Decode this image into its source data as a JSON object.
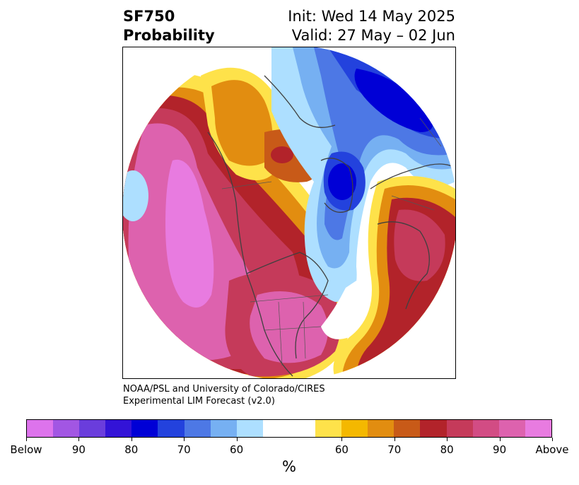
{
  "title": {
    "variable": "SF750",
    "subtitle": "Probability",
    "init": "Init: Wed 14 May 2025",
    "valid": "Valid: 27 May – 02 Jun"
  },
  "credit": {
    "line1": "NOAA/PSL and University of Colorado/CIRES",
    "line2": "Experimental LIM Forecast (v2.0)"
  },
  "colorbar": {
    "unit": "%",
    "colors": [
      "#dd73ec",
      "#a256e3",
      "#6a3ddc",
      "#3313d7",
      "#0000d6",
      "#2342dd",
      "#4d78e5",
      "#76b0f2",
      "#addfff",
      "#ffffff",
      "#ffffff",
      "#fee24a",
      "#f4b800",
      "#e28d10",
      "#c85a18",
      "#b2232a",
      "#c53a5a",
      "#d24c84",
      "#dd62ae",
      "#e87be0"
    ],
    "labels": [
      "Below",
      "90",
      "80",
      "70",
      "60",
      "60",
      "70",
      "80",
      "90",
      "Above"
    ]
  }
}
